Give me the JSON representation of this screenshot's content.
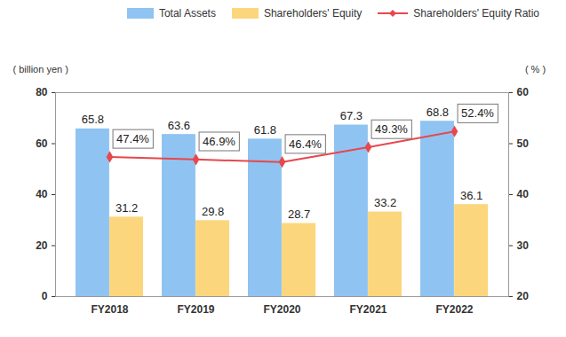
{
  "chart_data": {
    "type": "bar",
    "categories": [
      "FY2018",
      "FY2019",
      "FY2020",
      "FY2021",
      "FY2022"
    ],
    "y_label": "( billion yen )",
    "y2_label": "( % )",
    "ylim": [
      0,
      80
    ],
    "yticks": [
      0,
      20,
      40,
      60,
      80
    ],
    "y2lim": [
      20,
      60
    ],
    "y2ticks": [
      20,
      30,
      40,
      50,
      60
    ],
    "grid": false,
    "legend": "top-right",
    "data_labels": true,
    "series": [
      {
        "name": "Total Assets",
        "color": "#8fc3f2",
        "values": [
          65.8,
          63.6,
          61.8,
          67.3,
          68.8
        ]
      },
      {
        "name": "Shareholders' Equity",
        "color": "#fbd67c",
        "values": [
          31.2,
          29.8,
          28.7,
          33.2,
          36.1
        ]
      },
      {
        "name": "Shareholders' Equity Ratio",
        "type": "line",
        "axis": "y2",
        "color": "#e8474c",
        "marker": "diamond",
        "values": [
          47.4,
          46.9,
          46.4,
          49.3,
          52.4
        ],
        "value_labels": [
          "47.4%",
          "46.9%",
          "46.4%",
          "49.3%",
          "52.4%"
        ]
      }
    ]
  }
}
